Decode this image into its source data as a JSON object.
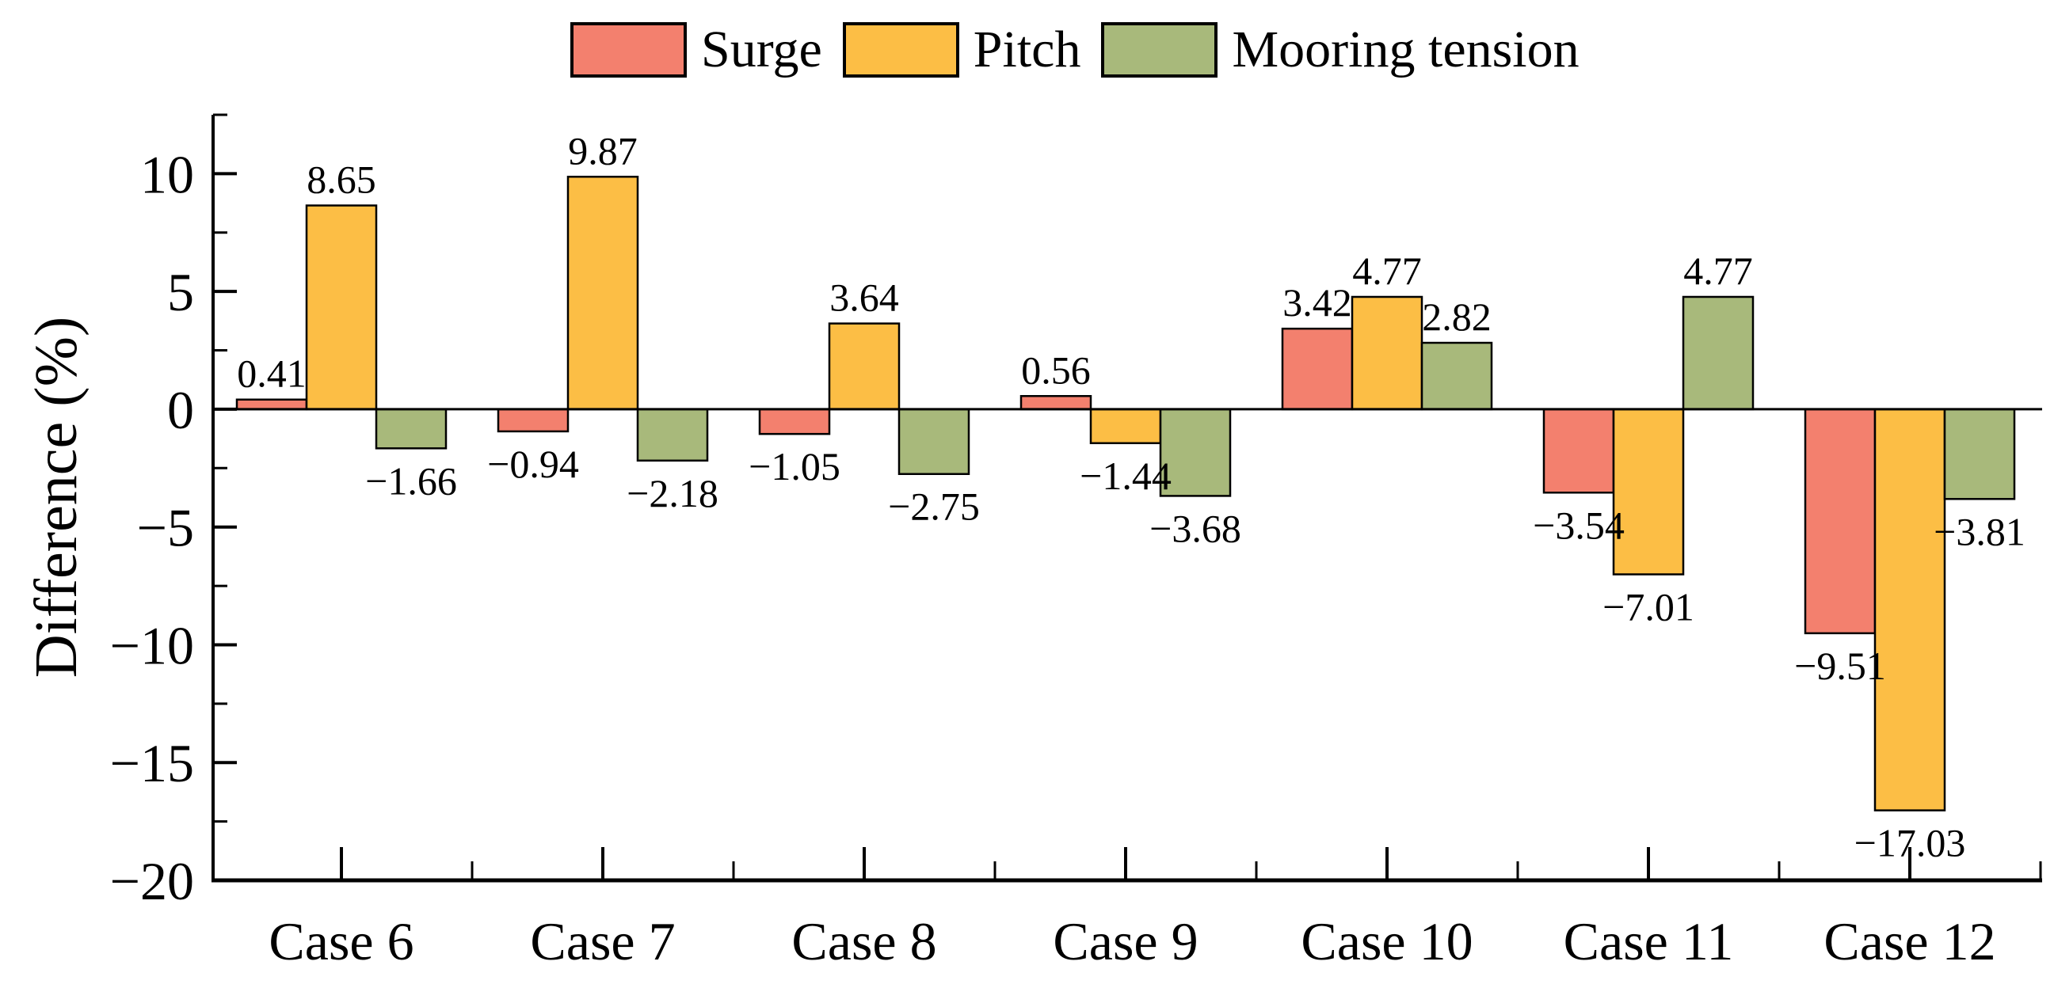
{
  "figure": {
    "background": "#ffffff",
    "axis_color": "#000000"
  },
  "chart_data": {
    "type": "bar",
    "title": "",
    "xlabel": "",
    "ylabel": "Difference (%)",
    "ylim": [
      -20,
      12.5
    ],
    "y_major_ticks": [
      10,
      5,
      0,
      -5,
      -10,
      -15,
      -20
    ],
    "y_minor_step": 2.5,
    "grid": false,
    "legend_position": "top",
    "categories": [
      "Case 6",
      "Case 7",
      "Case 8",
      "Case 9",
      "Case 10",
      "Case 11",
      "Case 12"
    ],
    "series": [
      {
        "name": "Surge",
        "color": "#F3806E",
        "values": [
          0.41,
          -0.94,
          -1.05,
          0.56,
          3.42,
          -3.54,
          -9.51
        ]
      },
      {
        "name": "Pitch",
        "color": "#FCBE45",
        "values": [
          8.65,
          9.87,
          3.64,
          -1.44,
          4.77,
          -7.01,
          -17.03
        ]
      },
      {
        "name": "Mooring tension",
        "color": "#A8B97B",
        "values": [
          -1.66,
          -2.18,
          -2.75,
          -3.68,
          2.82,
          4.77,
          -3.81
        ]
      }
    ],
    "value_labels_shown": true
  }
}
